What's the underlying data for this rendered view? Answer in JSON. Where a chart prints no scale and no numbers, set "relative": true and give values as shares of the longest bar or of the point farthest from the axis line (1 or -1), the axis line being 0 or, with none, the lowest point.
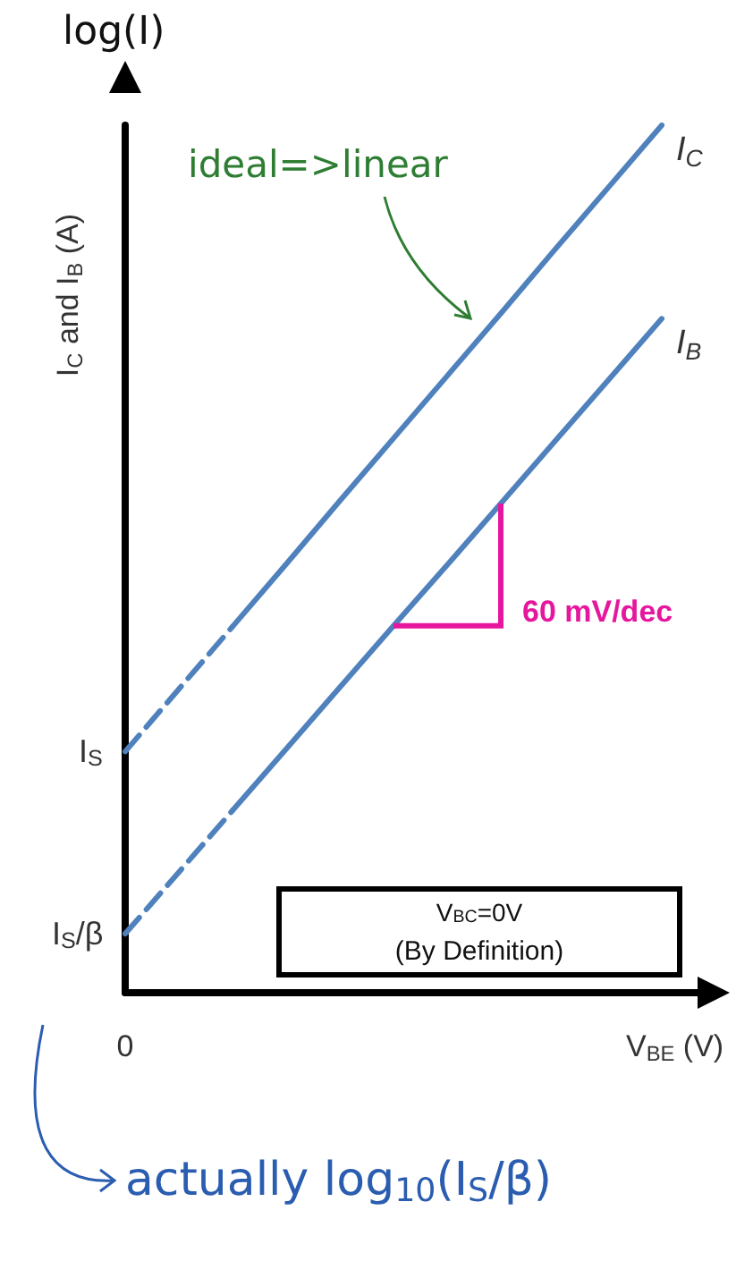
{
  "chart_data": {
    "type": "line",
    "relative": true,
    "xlabel": "V$_{BE}$ (V)",
    "ylabel": "I$_{C}$ and I$_{B}$ (A)",
    "categories": [
      null,
      null,
      null,
      null,
      null,
      null,
      null,
      null,
      null,
      null,
      null,
      null
    ],
    "marker": "none",
    "legend": false,
    "grid": false,
    "series": [
      {
        "color": "#4f81bd",
        "line_style": "dashed",
        "values": [
          0.278,
          0.35,
          0.422,
          null,
          null,
          null,
          null,
          null,
          null,
          null,
          null,
          null
        ]
      },
      {
        "name": "I$_{C}$",
        "color": "#4f81bd",
        "line_style": "solid",
        "values": [
          null,
          null,
          0.422,
          0.494,
          0.567,
          0.639,
          0.711,
          0.783,
          0.856,
          0.928,
          1.0,
          null
        ]
      },
      {
        "color": "#4f81bd",
        "line_style": "dashed",
        "values": [
          0.068,
          0.139,
          0.21,
          null,
          null,
          null,
          null,
          null,
          null,
          null,
          null,
          null
        ]
      },
      {
        "name": "I$_{B}$",
        "color": "#4f81bd",
        "line_style": "solid",
        "values": [
          null,
          null,
          0.21,
          0.281,
          0.352,
          0.423,
          0.493,
          0.564,
          0.635,
          0.706,
          0.777,
          null
        ]
      }
    ],
    "annotations": [
      "log(I)",
      "ideal=>linear",
      "60 mV/dec",
      "V$_{BC}$=0V",
      "(By Definition)",
      "actually log$_{10}$(I$_{S}$/β)",
      "I$_{S}$",
      "I$_{S}$/β",
      "0"
    ]
  }
}
